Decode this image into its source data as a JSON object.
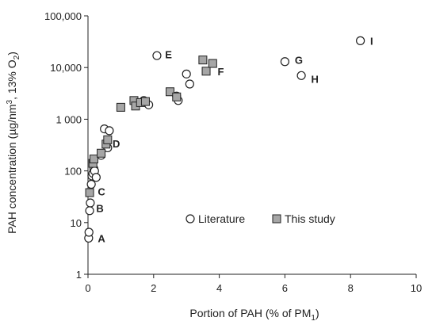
{
  "chart_data": {
    "type": "scatter",
    "xlabel": "Portion of PAH (% of PM",
    "xlabel_sub": "1",
    "xlabel_end": ")",
    "ylabel_pre": "PAH concentration (µg/nm",
    "ylabel_sup": "3",
    "ylabel_mid": ", 13% O",
    "ylabel_sub": "2",
    "ylabel_end": ")",
    "xlim": [
      0,
      10
    ],
    "ylim": [
      1,
      100000
    ],
    "yscale": "log",
    "grid": false,
    "legend_placement": "bottom-right",
    "x_ticks": [
      0,
      2,
      4,
      6,
      8,
      10
    ],
    "x_tick_labels": [
      "0",
      "2",
      "4",
      "6",
      "8",
      "10"
    ],
    "y_ticks": [
      1,
      10,
      100,
      1000,
      10000,
      100000
    ],
    "y_tick_labels": [
      "1",
      "10",
      "100",
      "1 000",
      "10,000",
      "100,000"
    ],
    "series": [
      {
        "name": "Literature",
        "marker": "circle",
        "fill": "#ffffff",
        "x": [
          0.02,
          0.03,
          0.05,
          0.07,
          0.1,
          0.12,
          0.15,
          0.18,
          0.2,
          0.25,
          0.4,
          0.5,
          0.6,
          0.65,
          1.7,
          1.85,
          2.1,
          2.7,
          2.75,
          3.0,
          3.1,
          6.0,
          6.5,
          8.3
        ],
        "y": [
          5,
          6.5,
          17,
          24,
          55,
          80,
          90,
          110,
          100,
          75,
          200,
          650,
          280,
          600,
          2300,
          1900,
          17000,
          2800,
          2300,
          7500,
          4800,
          13000,
          7000,
          33000
        ]
      },
      {
        "name": "This study",
        "marker": "square",
        "fill": "#a6a6a6",
        "x": [
          0.05,
          0.15,
          0.18,
          0.4,
          0.55,
          0.6,
          1.0,
          1.4,
          1.45,
          1.6,
          1.75,
          2.5,
          2.7,
          3.5,
          3.6,
          3.8
        ],
        "y": [
          38,
          140,
          170,
          220,
          330,
          400,
          1700,
          2300,
          1800,
          2100,
          2200,
          3400,
          2700,
          14000,
          8500,
          12000
        ]
      }
    ],
    "annotations": [
      {
        "label": "A",
        "x": 0.3,
        "y": 5
      },
      {
        "label": "B",
        "x": 0.25,
        "y": 19
      },
      {
        "label": "C",
        "x": 0.3,
        "y": 40
      },
      {
        "label": "D",
        "x": 0.75,
        "y": 340
      },
      {
        "label": "E",
        "x": 2.35,
        "y": 18000
      },
      {
        "label": "F",
        "x": 3.95,
        "y": 8500
      },
      {
        "label": "G",
        "x": 6.3,
        "y": 14000
      },
      {
        "label": "H",
        "x": 6.8,
        "y": 6000
      },
      {
        "label": "I",
        "x": 8.6,
        "y": 33000
      }
    ]
  }
}
